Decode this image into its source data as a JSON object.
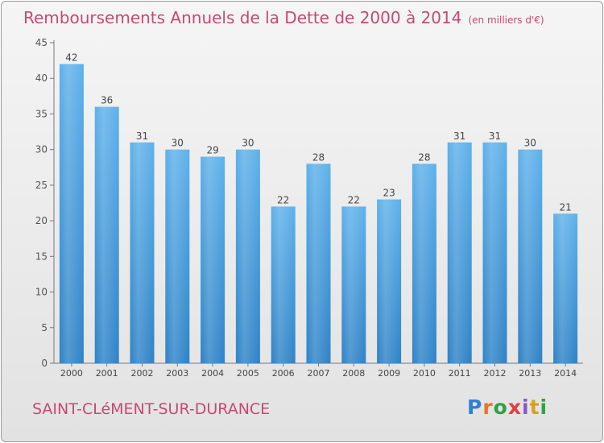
{
  "title": "Remboursements Annuels de la Dette de 2000 à 2014",
  "unit": "(en milliers d'€)",
  "city": "SAINT-CLéMENT-SUR-DURANCE",
  "logo": [
    "P",
    "r",
    "o",
    "x",
    "i",
    "t",
    "i"
  ],
  "colors": {
    "title": "#c44a72",
    "bar_light": "#5eb1ea",
    "bar_dark": "#2e82c6"
  },
  "chart_data": {
    "type": "bar",
    "title": "Remboursements Annuels de la Dette de 2000 à 2014",
    "ylabel": "en milliers d'€",
    "xlabel": "",
    "categories": [
      "2000",
      "2001",
      "2002",
      "2003",
      "2004",
      "2005",
      "2006",
      "2007",
      "2008",
      "2009",
      "2010",
      "2011",
      "2012",
      "2013",
      "2014"
    ],
    "values": [
      42,
      36,
      31,
      30,
      29,
      30,
      22,
      28,
      22,
      23,
      28,
      31,
      31,
      30,
      21
    ],
    "ylim": [
      0,
      45
    ],
    "yticks": [
      0,
      5,
      10,
      15,
      20,
      25,
      30,
      35,
      40,
      45
    ],
    "grid": false
  }
}
